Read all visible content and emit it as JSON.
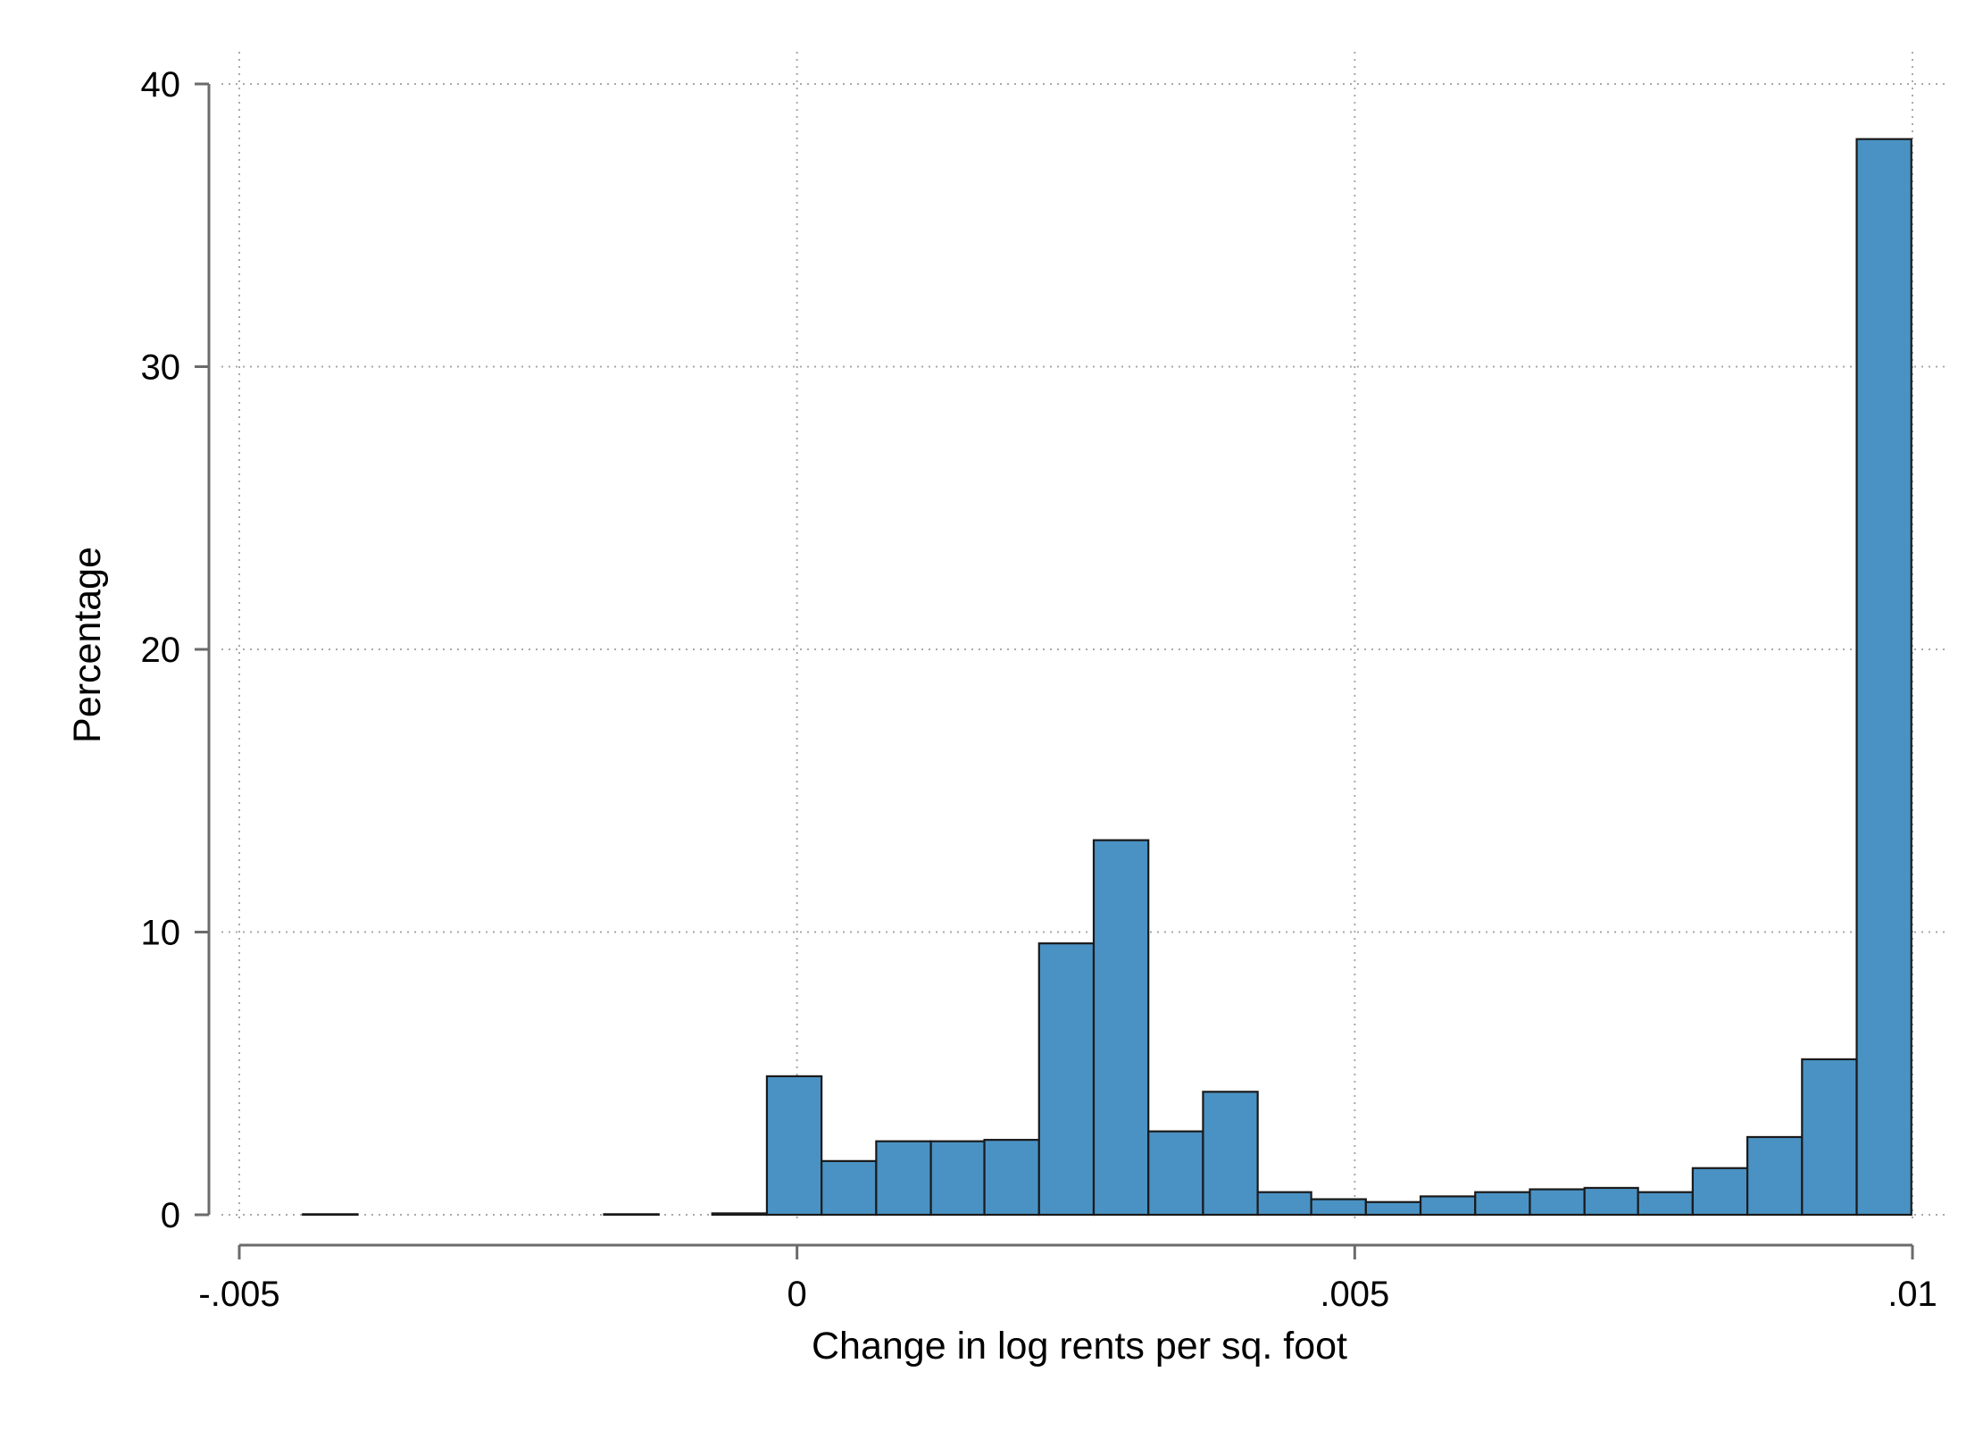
{
  "chart_data": {
    "type": "bar",
    "title": "",
    "xlabel": "Change in log rents per sq. foot",
    "ylabel": "Percentage",
    "xlim": [
      -0.005,
      0.01
    ],
    "ylim": [
      0,
      40
    ],
    "grid": true,
    "legend": "none",
    "bin_width": 0.000488,
    "xticks": [
      {
        "value": -0.005,
        "label": "-.005"
      },
      {
        "value": 0,
        "label": "0"
      },
      {
        "value": 0.005,
        "label": ".005"
      },
      {
        "value": 0.01,
        "label": ".01"
      }
    ],
    "yticks": [
      {
        "value": 0,
        "label": "0"
      },
      {
        "value": 10,
        "label": "10"
      },
      {
        "value": 20,
        "label": "20"
      },
      {
        "value": 30,
        "label": "30"
      },
      {
        "value": 40,
        "label": "40"
      }
    ],
    "bars": [
      {
        "x0": -0.00443,
        "x1": -0.00394,
        "value": 0.02
      },
      {
        "x0": -0.00173,
        "x1": -0.00124,
        "value": 0.02
      },
      {
        "x0": -0.00076,
        "x1": -0.00027,
        "value": 0.05
      },
      {
        "x0": -0.00027,
        "x1": 0.00022,
        "value": 4.9
      },
      {
        "x0": 0.00022,
        "x1": 0.00071,
        "value": 1.9
      },
      {
        "x0": 0.00071,
        "x1": 0.0012,
        "value": 2.6
      },
      {
        "x0": 0.0012,
        "x1": 0.00168,
        "value": 2.6
      },
      {
        "x0": 0.00168,
        "x1": 0.00217,
        "value": 2.65
      },
      {
        "x0": 0.00217,
        "x1": 0.00266,
        "value": 9.6
      },
      {
        "x0": 0.00266,
        "x1": 0.00315,
        "value": 13.25
      },
      {
        "x0": 0.00315,
        "x1": 0.00364,
        "value": 2.95
      },
      {
        "x0": 0.00364,
        "x1": 0.00413,
        "value": 4.35
      },
      {
        "x0": 0.00413,
        "x1": 0.00461,
        "value": 0.8
      },
      {
        "x0": 0.00461,
        "x1": 0.0051,
        "value": 0.55
      },
      {
        "x0": 0.0051,
        "x1": 0.00559,
        "value": 0.45
      },
      {
        "x0": 0.00559,
        "x1": 0.00608,
        "value": 0.65
      },
      {
        "x0": 0.00608,
        "x1": 0.00657,
        "value": 0.8
      },
      {
        "x0": 0.00657,
        "x1": 0.00706,
        "value": 0.9
      },
      {
        "x0": 0.00706,
        "x1": 0.00754,
        "value": 0.95
      },
      {
        "x0": 0.00754,
        "x1": 0.00803,
        "value": 0.8
      },
      {
        "x0": 0.00803,
        "x1": 0.00852,
        "value": 1.65
      },
      {
        "x0": 0.00852,
        "x1": 0.00901,
        "value": 2.75
      },
      {
        "x0": 0.00901,
        "x1": 0.0095,
        "value": 5.5
      },
      {
        "x0": 0.0095,
        "x1": 0.00999,
        "value": 38.05
      }
    ],
    "colors": {
      "bar_fill": "#4a92c4",
      "bar_stroke": "#1a1a1a",
      "grid": "#a9a9a9",
      "axis": "#6b6b6b"
    }
  }
}
